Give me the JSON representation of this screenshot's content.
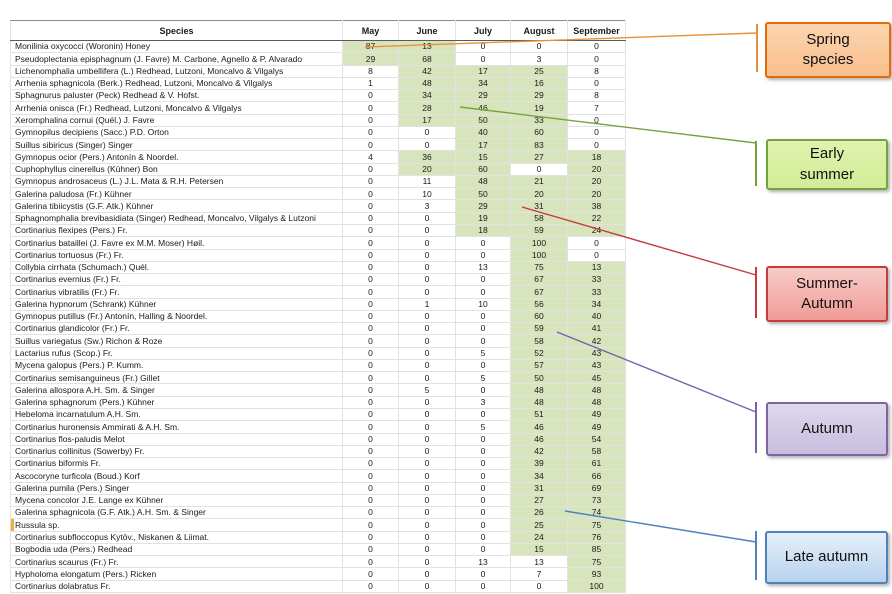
{
  "chart_data": {
    "type": "table",
    "columns": [
      "Species",
      "May",
      "June",
      "July",
      "August",
      "September"
    ],
    "highlight_color": "#D7E4BC",
    "rows": [
      {
        "species": "Monilinia oxycocci (Woronin) Honey",
        "values": [
          87,
          13,
          0,
          0,
          0
        ],
        "highlight_months": [
          "May",
          "June"
        ]
      },
      {
        "species": "Pseudoplectania episphagnum (J. Favre) M. Carbone, Agnello & P. Alvarado",
        "values": [
          29,
          68,
          0,
          3,
          0
        ],
        "highlight_months": [
          "May",
          "June"
        ]
      },
      {
        "species": "Lichenomphalia umbellifera (L.) Redhead, Lutzoni, Moncalvo & Vilgalys",
        "values": [
          8,
          42,
          17,
          25,
          8
        ],
        "highlight_months": [
          "June",
          "July",
          "August"
        ]
      },
      {
        "species": "Arrhenia sphagnicola (Berk.) Redhead, Lutzoni, Moncalvo & Vilgalys",
        "values": [
          1,
          48,
          34,
          16,
          0
        ],
        "highlight_months": [
          "June",
          "July",
          "August"
        ]
      },
      {
        "species": "Sphagnurus paluster (Peck) Redhead & V. Hofst.",
        "values": [
          0,
          34,
          29,
          29,
          8
        ],
        "highlight_months": [
          "June",
          "July",
          "August"
        ]
      },
      {
        "species": "Arrhenia onisca (Fr.) Redhead, Lutzoni, Moncalvo & Vilgalys",
        "values": [
          0,
          28,
          46,
          19,
          7
        ],
        "highlight_months": [
          "June",
          "July",
          "August"
        ]
      },
      {
        "species": "Xeromphalina cornui (Quél.) J. Favre",
        "values": [
          0,
          17,
          50,
          33,
          0
        ],
        "highlight_months": [
          "June",
          "July",
          "August"
        ]
      },
      {
        "species": "Gymnopilus decipiens (Sacc.) P.D. Orton",
        "values": [
          0,
          0,
          40,
          60,
          0
        ],
        "highlight_months": [
          "July",
          "August"
        ]
      },
      {
        "species": "Suillus sibiricus (Singer) Singer",
        "values": [
          0,
          0,
          17,
          83,
          0
        ],
        "highlight_months": [
          "July",
          "August"
        ]
      },
      {
        "species": "Gymnopus ocior (Pers.) Antonín & Noordel.",
        "values": [
          4,
          36,
          15,
          27,
          18
        ],
        "highlight_months": [
          "June",
          "July",
          "August",
          "September"
        ]
      },
      {
        "species": "Cuphophyllus cinerellus (Kühner) Bon",
        "values": [
          0,
          20,
          60,
          0,
          20
        ],
        "highlight_months": [
          "June",
          "July",
          "September"
        ]
      },
      {
        "species": "Gymnopus androsaceus (L.) J.L. Mata & R.H. Petersen",
        "values": [
          0,
          11,
          48,
          21,
          20
        ],
        "highlight_months": [
          "July",
          "August",
          "September"
        ]
      },
      {
        "species": "Galerina paludosa (Fr.) Kühner",
        "values": [
          0,
          10,
          50,
          20,
          20
        ],
        "highlight_months": [
          "July",
          "August",
          "September"
        ]
      },
      {
        "species": "Galerina tibiicystis (G.F. Atk.) Kühner",
        "values": [
          0,
          3,
          29,
          31,
          38
        ],
        "highlight_months": [
          "July",
          "August",
          "September"
        ]
      },
      {
        "species": "Sphagnomphalia brevibasidiata (Singer) Redhead, Moncalvo, Vilgalys & Lutzoni",
        "values": [
          0,
          0,
          19,
          58,
          22
        ],
        "highlight_months": [
          "July",
          "August",
          "September"
        ]
      },
      {
        "species": "Cortinarius flexipes (Pers.) Fr.",
        "values": [
          0,
          0,
          18,
          59,
          24
        ],
        "highlight_months": [
          "July",
          "August",
          "September"
        ]
      },
      {
        "species": "Cortinarius bataillei (J. Favre ex M.M. Moser) Høil.",
        "values": [
          0,
          0,
          0,
          100,
          0
        ],
        "highlight_months": [
          "August"
        ]
      },
      {
        "species": "Cortinarius tortuosus (Fr.) Fr.",
        "values": [
          0,
          0,
          0,
          100,
          0
        ],
        "highlight_months": [
          "August"
        ]
      },
      {
        "species": "Collybia cirrhata (Schumach.) Quél.",
        "values": [
          0,
          0,
          13,
          75,
          13
        ],
        "highlight_months": [
          "August",
          "September"
        ]
      },
      {
        "species": "Cortinarius evernius (Fr.) Fr.",
        "values": [
          0,
          0,
          0,
          67,
          33
        ],
        "highlight_months": [
          "August",
          "September"
        ]
      },
      {
        "species": "Cortinarius vibratilis (Fr.) Fr.",
        "values": [
          0,
          0,
          0,
          67,
          33
        ],
        "highlight_months": [
          "August",
          "September"
        ]
      },
      {
        "species": "Galerina hypnorum (Schrank) Kühner",
        "values": [
          0,
          1,
          10,
          56,
          34
        ],
        "highlight_months": [
          "August",
          "September"
        ]
      },
      {
        "species": "Gymnopus putillus (Fr.) Antonín, Halling & Noordel.",
        "values": [
          0,
          0,
          0,
          60,
          40
        ],
        "highlight_months": [
          "August",
          "September"
        ]
      },
      {
        "species": "Cortinarius glandicolor (Fr.) Fr.",
        "values": [
          0,
          0,
          0,
          59,
          41
        ],
        "highlight_months": [
          "August",
          "September"
        ]
      },
      {
        "species": "Suillus variegatus (Sw.) Richon & Roze",
        "values": [
          0,
          0,
          0,
          58,
          42
        ],
        "highlight_months": [
          "August",
          "September"
        ]
      },
      {
        "species": "Lactarius rufus (Scop.) Fr.",
        "values": [
          0,
          0,
          5,
          52,
          43
        ],
        "highlight_months": [
          "August",
          "September"
        ]
      },
      {
        "species": "Mycena galopus (Pers.) P. Kumm.",
        "values": [
          0,
          0,
          0,
          57,
          43
        ],
        "highlight_months": [
          "August",
          "September"
        ]
      },
      {
        "species": "Cortinarius semisanguineus (Fr.) Gillet",
        "values": [
          0,
          0,
          5,
          50,
          45
        ],
        "highlight_months": [
          "August",
          "September"
        ]
      },
      {
        "species": "Galerina allospora A.H. Sm. & Singer",
        "values": [
          0,
          5,
          0,
          48,
          48
        ],
        "highlight_months": [
          "August",
          "September"
        ]
      },
      {
        "species": "Galerina sphagnorum (Pers.) Kühner",
        "values": [
          0,
          0,
          3,
          48,
          48
        ],
        "highlight_months": [
          "August",
          "September"
        ]
      },
      {
        "species": "Hebeloma incarnatulum A.H. Sm.",
        "values": [
          0,
          0,
          0,
          51,
          49
        ],
        "highlight_months": [
          "August",
          "September"
        ]
      },
      {
        "species": "Cortinarius huronensis Ammirati & A.H. Sm.",
        "values": [
          0,
          0,
          5,
          46,
          49
        ],
        "highlight_months": [
          "August",
          "September"
        ]
      },
      {
        "species": "Cortinarius flos-paludis Melot",
        "values": [
          0,
          0,
          0,
          46,
          54
        ],
        "highlight_months": [
          "August",
          "September"
        ]
      },
      {
        "species": "Cortinarius collinitus (Sowerby) Fr.",
        "values": [
          0,
          0,
          0,
          42,
          58
        ],
        "highlight_months": [
          "August",
          "September"
        ]
      },
      {
        "species": "Cortinarius biformis Fr.",
        "values": [
          0,
          0,
          0,
          39,
          61
        ],
        "highlight_months": [
          "August",
          "September"
        ]
      },
      {
        "species": "Ascocoryne turficola (Boud.) Korf",
        "values": [
          0,
          0,
          0,
          34,
          66
        ],
        "highlight_months": [
          "August",
          "September"
        ]
      },
      {
        "species": "Galerina pumila (Pers.) Singer",
        "values": [
          0,
          0,
          0,
          31,
          69
        ],
        "highlight_months": [
          "August",
          "September"
        ]
      },
      {
        "species": "Mycena concolor J.E. Lange ex Kühner",
        "values": [
          0,
          0,
          0,
          27,
          73
        ],
        "highlight_months": [
          "August",
          "September"
        ]
      },
      {
        "species": "Galerina sphagnicola (G.F. Atk.) A.H. Sm. & Singer",
        "values": [
          0,
          0,
          0,
          26,
          74
        ],
        "highlight_months": [
          "August",
          "September"
        ]
      },
      {
        "species": "Russula sp.",
        "values": [
          0,
          0,
          0,
          25,
          75
        ],
        "highlight_months": [
          "August",
          "September"
        ],
        "marker": true
      },
      {
        "species": "Cortinarius subfloccopus Kytöv., Niskanen & Liimat.",
        "values": [
          0,
          0,
          0,
          24,
          76
        ],
        "highlight_months": [
          "August",
          "September"
        ]
      },
      {
        "species": "Bogbodia uda (Pers.) Redhead",
        "values": [
          0,
          0,
          0,
          15,
          85
        ],
        "highlight_months": [
          "August",
          "September"
        ]
      },
      {
        "species": "Cortinarius scaurus (Fr.) Fr.",
        "values": [
          0,
          0,
          13,
          13,
          75
        ],
        "highlight_months": [
          "September"
        ]
      },
      {
        "species": "Hypholoma elongatum (Pers.) Ricken",
        "values": [
          0,
          0,
          0,
          7,
          93
        ],
        "highlight_months": [
          "September"
        ]
      },
      {
        "species": "Cortinarius dolabratus Fr.",
        "values": [
          0,
          0,
          0,
          0,
          100
        ],
        "highlight_months": [
          "September"
        ]
      }
    ]
  },
  "callouts": [
    {
      "label": "Spring\nspecies",
      "fill_top": "#FBD5B0",
      "fill_bottom": "#F9BE8D",
      "border": "#E36C0A",
      "line_color": "#E8913D"
    },
    {
      "label": "Early\nsummer",
      "fill_top": "#DFF2AE",
      "fill_bottom": "#D2EC98",
      "border": "#74A23C",
      "line_color": "#77A23E"
    },
    {
      "label": "Summer-\nAutumn",
      "fill_top": "#F8CCC8",
      "fill_bottom": "#F09B96",
      "border": "#C43C3C",
      "line_color": "#C63A3A"
    },
    {
      "label": "Autumn",
      "fill_top": "#DED8EC",
      "fill_bottom": "#C8BDDE",
      "border": "#8064A2",
      "line_color": "#7663A8"
    },
    {
      "label": "Late autumn",
      "fill_top": "#E5EFFA",
      "fill_bottom": "#B9D3EE",
      "border": "#4F81BD",
      "line_color": "#4F81BD"
    }
  ]
}
